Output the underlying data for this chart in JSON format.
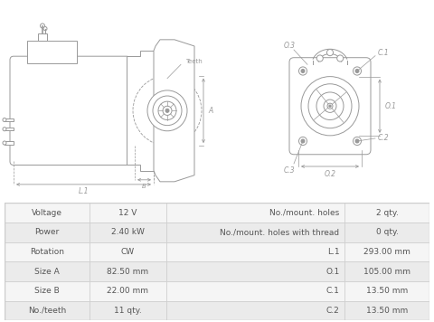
{
  "bg_color": "#ffffff",
  "table_bg_row1": "#f5f5f5",
  "table_bg_row2": "#ebebeb",
  "table_border": "#cccccc",
  "table_text_color": "#555555",
  "diagram_color": "#999999",
  "table_rows": [
    [
      "Voltage",
      "12 V",
      "No./mount. holes",
      "2 qty."
    ],
    [
      "Power",
      "2.40 kW",
      "No./mount. holes with thread",
      "0 qty."
    ],
    [
      "Rotation",
      "CW",
      "L.1",
      "293.00 mm"
    ],
    [
      "Size A",
      "82.50 mm",
      "O.1",
      "105.00 mm"
    ],
    [
      "Size B",
      "22.00 mm",
      "C.1",
      "13.50 mm"
    ],
    [
      "No./teeth",
      "11 qty.",
      "C.2",
      "13.50 mm"
    ]
  ]
}
